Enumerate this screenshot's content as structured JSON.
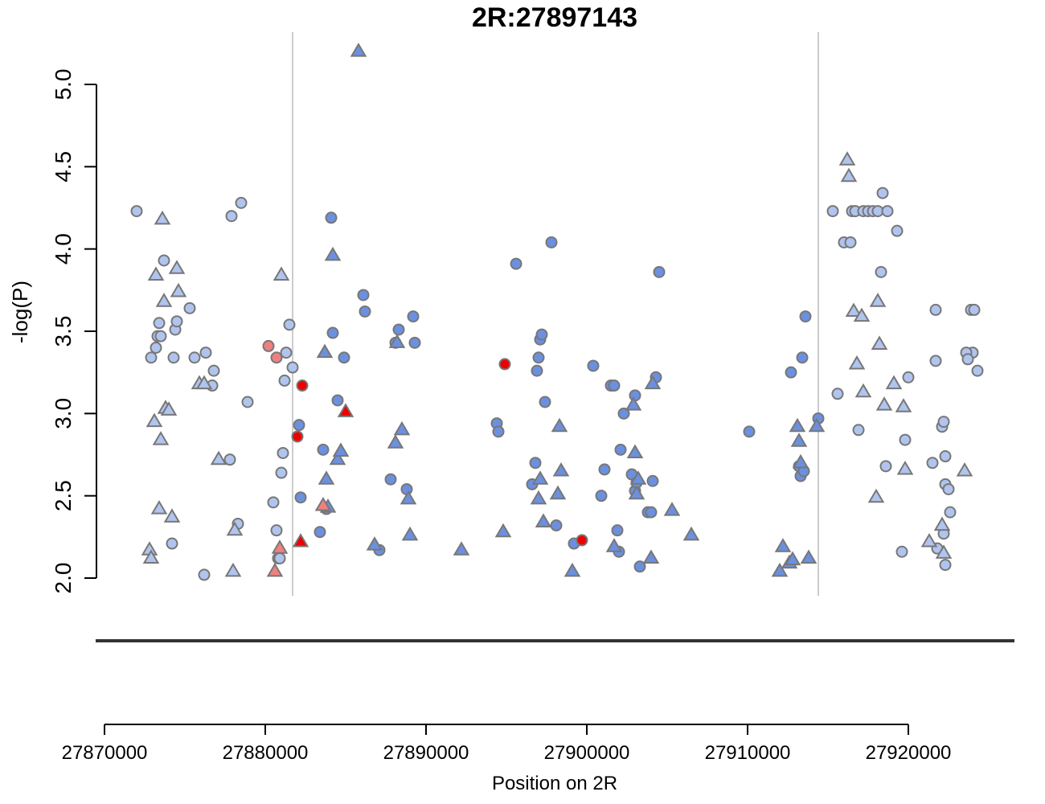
{
  "chart_data": {
    "type": "scatter",
    "title": "2R:27897143",
    "xlabel": "Position on 2R",
    "ylabel": "-log(P)",
    "xlim": [
      27870000,
      27925000
    ],
    "ylim": [
      2.0,
      5.0
    ],
    "x_ticks": [
      27870000,
      27880000,
      27890000,
      27900000,
      27910000,
      27920000
    ],
    "x_tick_labels": [
      "27870000",
      "27880000",
      "27890000",
      "27900000",
      "27910000",
      "27920000"
    ],
    "y_ticks": [
      2.0,
      2.5,
      3.0,
      3.5,
      4.0,
      4.5,
      5.0
    ],
    "y_tick_labels": [
      "2.0",
      "2.5",
      "3.0",
      "3.5",
      "4.0",
      "4.5",
      "5.0"
    ],
    "vertical_lines": [
      27881700,
      27914400
    ],
    "grid": false,
    "legend": "none",
    "colors": {
      "light_blue": "#b0c4ee",
      "blue": "#6b90e0",
      "salmon": "#f08080",
      "red": "#ee0000",
      "outline": "#777777"
    },
    "series": [
      {
        "marker": "circle",
        "color": "light_blue",
        "x": [
          27872000,
          27872900,
          27873200,
          27873300,
          27873400,
          27873500,
          27873700,
          27874200,
          27874300,
          27874400,
          27874500,
          27875300,
          27875600,
          27876200,
          27876300,
          27876700,
          27876800,
          27877800,
          27877900,
          27878300,
          27878500,
          27878900,
          27880500,
          27880700,
          27880800,
          27880900,
          27881000,
          27881100,
          27881200,
          27881300,
          27881500,
          27881700,
          27915600,
          27915300,
          27916000,
          27916400,
          27916500,
          27916700,
          27917200,
          27917500,
          27917800,
          27918100,
          27918400,
          27918700,
          27919300,
          27918300,
          27918600,
          27916900,
          27919600,
          27919800,
          27920000,
          27921500,
          27921700,
          27921700,
          27921800,
          27922100,
          27922200,
          27922300,
          27922500,
          27922600,
          27923900,
          27924000,
          27924100,
          27924300,
          27923600,
          27923700,
          27922300,
          27922200,
          27922300
        ],
        "y": [
          4.23,
          3.34,
          3.4,
          3.47,
          3.55,
          3.47,
          3.93,
          2.21,
          3.34,
          3.51,
          3.56,
          3.64,
          3.34,
          2.02,
          3.37,
          3.17,
          3.26,
          2.72,
          4.2,
          2.33,
          4.28,
          3.07,
          2.46,
          2.29,
          2.12,
          2.12,
          2.64,
          2.76,
          3.2,
          3.37,
          3.54,
          3.28,
          3.12,
          4.23,
          4.04,
          4.04,
          4.23,
          4.23,
          4.23,
          4.23,
          4.23,
          4.23,
          4.34,
          4.23,
          4.11,
          3.86,
          2.68,
          2.9,
          2.16,
          2.84,
          3.22,
          2.7,
          3.32,
          3.63,
          2.18,
          2.92,
          2.95,
          2.57,
          2.54,
          2.4,
          3.63,
          3.37,
          3.63,
          3.26,
          3.37,
          3.33,
          2.74,
          2.27,
          2.08
        ]
      },
      {
        "marker": "triangle",
        "color": "light_blue",
        "x": [
          27872800,
          27872900,
          27873100,
          27873200,
          27873400,
          27873500,
          27873600,
          27873700,
          27873800,
          27874000,
          27874200,
          27874500,
          27874600,
          27875900,
          27876200,
          27877100,
          27878000,
          27878100,
          27881000,
          27916200,
          27916300,
          27916600,
          27916800,
          27917100,
          27917200,
          27918000,
          27918100,
          27918200,
          27918500,
          27919100,
          27919700,
          27919800,
          27921300,
          27922100,
          27922200,
          27923500
        ],
        "y": [
          2.17,
          2.12,
          2.95,
          3.84,
          2.42,
          2.84,
          4.18,
          3.68,
          3.03,
          3.02,
          2.37,
          3.88,
          3.74,
          3.18,
          3.18,
          2.72,
          2.04,
          2.29,
          3.84,
          4.54,
          4.44,
          3.62,
          3.3,
          3.59,
          3.13,
          2.49,
          3.68,
          3.42,
          3.05,
          3.18,
          3.04,
          2.66,
          2.22,
          2.32,
          2.15,
          2.65
        ]
      },
      {
        "marker": "circle",
        "color": "blue",
        "x": [
          27882100,
          27882200,
          27883400,
          27883600,
          27883800,
          27884100,
          27884200,
          27884500,
          27884900,
          27886100,
          27886200,
          27887100,
          27887800,
          27888100,
          27888300,
          27888800,
          27889200,
          27889300,
          27894400,
          27894500,
          27895600,
          27896600,
          27896800,
          27896900,
          27897000,
          27897100,
          27897200,
          27897400,
          27897800,
          27898100,
          27899200,
          27900400,
          27900900,
          27901100,
          27901500,
          27901700,
          27901900,
          27902000,
          27902100,
          27902300,
          27902800,
          27903000,
          27903000,
          27903100,
          27903300,
          27903800,
          27904000,
          27904100,
          27904300,
          27904500,
          27910100,
          27912700,
          27913200,
          27913300,
          27913400,
          27913500,
          27913600,
          27914400
        ],
        "y": [
          2.93,
          2.49,
          2.28,
          2.78,
          2.42,
          4.19,
          3.49,
          3.08,
          3.34,
          3.72,
          3.62,
          2.17,
          2.6,
          3.43,
          3.51,
          2.54,
          3.59,
          3.43,
          2.94,
          2.89,
          3.91,
          2.57,
          2.7,
          3.26,
          3.34,
          3.45,
          3.48,
          3.07,
          4.04,
          2.32,
          2.21,
          3.29,
          2.5,
          2.66,
          3.17,
          3.17,
          2.29,
          2.16,
          2.78,
          3.0,
          2.63,
          2.53,
          3.11,
          2.58,
          2.07,
          2.4,
          2.4,
          2.59,
          3.22,
          3.86,
          2.89,
          3.25,
          2.68,
          2.62,
          3.34,
          2.65,
          3.59,
          2.97
        ]
      },
      {
        "marker": "triangle",
        "color": "blue",
        "x": [
          27883700,
          27883800,
          27883900,
          27884200,
          27884500,
          27884700,
          27885800,
          27886800,
          27888100,
          27888200,
          27888500,
          27888900,
          27889000,
          27892200,
          27894800,
          27897000,
          27897100,
          27897300,
          27898200,
          27898300,
          27898400,
          27899100,
          27901700,
          27902900,
          27903000,
          27903100,
          27903200,
          27904000,
          27904100,
          27905300,
          27906500,
          27912000,
          27912200,
          27912600,
          27912800,
          27913100,
          27913200,
          27913300,
          27913800,
          27914300
        ],
        "y": [
          3.37,
          2.6,
          2.43,
          3.96,
          2.72,
          2.77,
          5.2,
          2.2,
          2.82,
          3.43,
          2.9,
          2.48,
          2.26,
          2.17,
          2.28,
          2.48,
          2.6,
          2.34,
          2.51,
          2.92,
          2.65,
          2.04,
          2.19,
          3.05,
          2.76,
          2.51,
          2.6,
          2.12,
          3.18,
          2.41,
          2.26,
          2.04,
          2.19,
          2.09,
          2.11,
          2.92,
          2.83,
          2.7,
          2.12,
          2.92
        ]
      },
      {
        "marker": "circle",
        "color": "salmon",
        "x": [
          27880200,
          27880700
        ],
        "y": [
          3.41,
          3.34
        ]
      },
      {
        "marker": "triangle",
        "color": "salmon",
        "x": [
          27880600,
          27880900,
          27883600
        ],
        "y": [
          2.04,
          2.18,
          2.44
        ]
      },
      {
        "marker": "circle",
        "color": "red",
        "x": [
          27882000,
          27882300,
          27894900,
          27899700
        ],
        "y": [
          2.86,
          3.17,
          3.3,
          2.23
        ]
      },
      {
        "marker": "triangle",
        "color": "red",
        "x": [
          27882200,
          27885000
        ],
        "y": [
          2.22,
          3.01
        ]
      }
    ]
  }
}
